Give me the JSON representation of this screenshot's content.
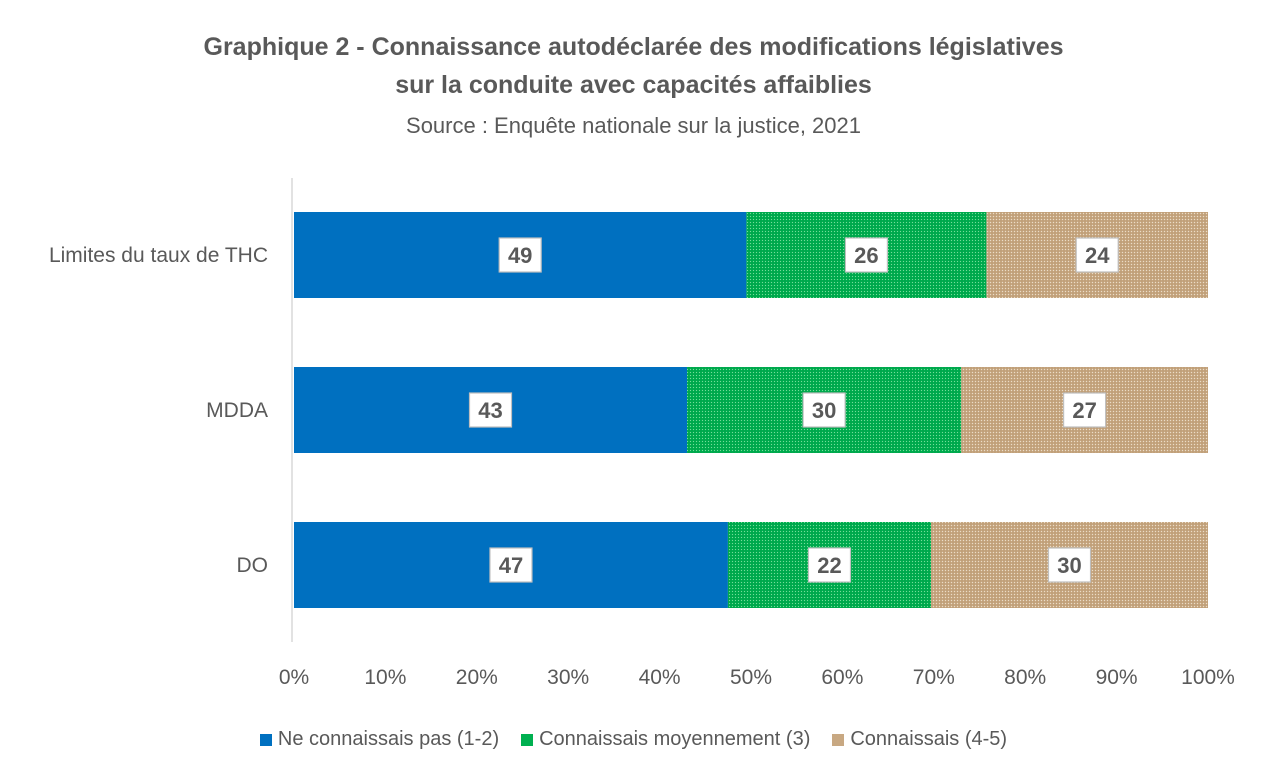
{
  "chart_data": {
    "type": "bar",
    "orientation": "horizontal",
    "stacked": true,
    "title_line1": "Graphique 2 - Connaissance autodéclarée des modifications législatives",
    "title_line2": "sur la conduite avec capacités affaiblies",
    "subtitle": "Source : Enquête nationale sur la justice, 2021",
    "categories": [
      "Limites du taux de THC",
      "MDDA",
      "DO"
    ],
    "series": [
      {
        "name": "Ne connaissais pas (1-2)",
        "color": "#0070C0",
        "pattern": "solid",
        "values": [
          49,
          43,
          47
        ]
      },
      {
        "name": "Connaissais moyennement (3)",
        "color": "#00B050",
        "pattern": "dotted",
        "values": [
          26,
          30,
          22
        ]
      },
      {
        "name": "Connaissais (4-5)",
        "color": "#C8A882",
        "pattern": "dotted",
        "values": [
          24,
          27,
          30
        ]
      }
    ],
    "xlim": [
      0,
      100
    ],
    "x_ticks": [
      "0%",
      "10%",
      "20%",
      "30%",
      "40%",
      "50%",
      "60%",
      "70%",
      "80%",
      "90%",
      "100%"
    ],
    "grid": false,
    "legend_position": "bottom"
  }
}
